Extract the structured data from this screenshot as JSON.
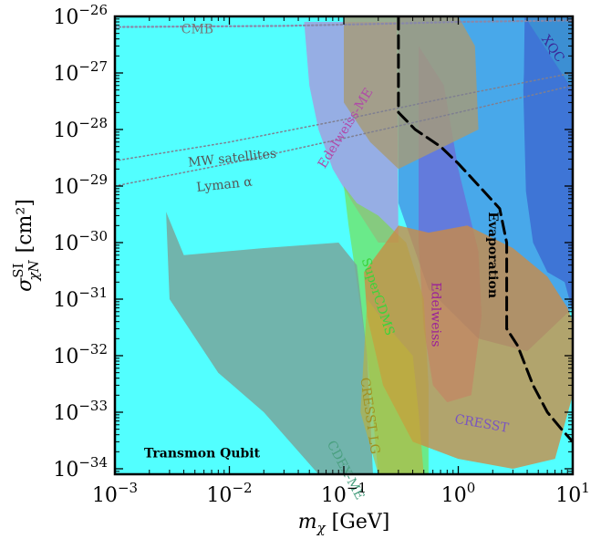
{
  "chart_data": {
    "type": "area",
    "title": "",
    "xlabel_base": "m",
    "xlabel_sub": "χ",
    "xlabel_unit": "[GeV]",
    "ylabel_base": "σ",
    "ylabel_sup": "SI",
    "ylabel_sub": "χN",
    "ylabel_unit": "[cm²]",
    "x_scale": "log",
    "y_scale": "log",
    "xlim": [
      0.001,
      10
    ],
    "ylim": [
      8e-35,
      1e-26
    ],
    "x_ticks": [
      {
        "base": "10",
        "exp": "−3",
        "value": 0.001
      },
      {
        "base": "10",
        "exp": "−2",
        "value": 0.01
      },
      {
        "base": "10",
        "exp": "−1",
        "value": 0.1
      },
      {
        "base": "10",
        "exp": "0",
        "value": 1
      },
      {
        "base": "10",
        "exp": "1",
        "value": 10
      }
    ],
    "y_ticks": [
      {
        "base": "10",
        "exp": "−26",
        "value": 1e-26
      },
      {
        "base": "10",
        "exp": "−27",
        "value": 1e-27
      },
      {
        "base": "10",
        "exp": "−28",
        "value": 1e-28
      },
      {
        "base": "10",
        "exp": "−29",
        "value": 1e-29
      },
      {
        "base": "10",
        "exp": "−30",
        "value": 1e-30
      },
      {
        "base": "10",
        "exp": "−31",
        "value": 1e-31
      },
      {
        "base": "10",
        "exp": "−32",
        "value": 1e-32
      },
      {
        "base": "10",
        "exp": "−33",
        "value": 1e-33
      },
      {
        "base": "10",
        "exp": "−34",
        "value": 1e-34
      }
    ],
    "regions": [
      {
        "name": "Transmon Qubit",
        "color": "#00ffff",
        "opacity": 0.68,
        "label_color": "#000000",
        "label_bold": true,
        "label_size": 19,
        "label_rotation": 0,
        "label_at": [
          0.0018,
          1.6e-34
        ],
        "points": [
          [
            0.001,
            8e-35
          ],
          [
            10,
            8e-35
          ],
          [
            10,
            1e-26
          ],
          [
            0.001,
            1e-26
          ]
        ]
      },
      {
        "name": "XQC",
        "color": "#2e4ab8",
        "opacity": 0.62,
        "label_color": "#3a2a9a",
        "label_bold": false,
        "label_size": 14,
        "label_rotation": 55,
        "label_at": [
          5.3,
          4e-27
        ],
        "points": [
          [
            3.8,
            1e-26
          ],
          [
            10,
            1e-26
          ],
          [
            10,
            6e-32
          ],
          [
            8.5,
            2e-31
          ],
          [
            6,
            3e-31
          ],
          [
            4.5,
            1e-30
          ],
          [
            3.9,
            8e-30
          ],
          [
            3.7,
            5e-28
          ],
          [
            3.75,
            1e-27
          ]
        ]
      },
      {
        "name": "Edelweiss",
        "color": "#c04bc4",
        "opacity": 0.55,
        "label_color": "#9a1f9a",
        "label_bold": false,
        "label_size": 14,
        "label_rotation": 90,
        "label_at": [
          0.59,
          2e-31
        ],
        "points": [
          [
            0.45,
            3e-27
          ],
          [
            0.75,
            6e-28
          ],
          [
            1.0,
            2e-29
          ],
          [
            1.5,
            7e-31
          ],
          [
            1.6,
            5e-32
          ],
          [
            1.3,
            2e-33
          ],
          [
            0.8,
            1.5e-33
          ],
          [
            0.6,
            3e-33
          ],
          [
            0.5,
            3e-32
          ],
          [
            0.45,
            1e-30
          ]
        ]
      },
      {
        "name": "blue-band",
        "color": "#4060d8",
        "opacity": 0.55,
        "points": [
          [
            0.3,
            1e-26
          ],
          [
            3.8,
            1e-26
          ],
          [
            10,
            5e-28
          ],
          [
            10,
            7e-32
          ],
          [
            4,
            1.2e-32
          ],
          [
            1.5,
            2e-32
          ],
          [
            0.55,
            1.5e-31
          ],
          [
            0.3,
            5e-30
          ]
        ]
      },
      {
        "name": "Edelweiss-ME",
        "color": "#b38cd8",
        "opacity": 0.7,
        "label_color": "#b04aa8",
        "label_bold": false,
        "label_size": 14,
        "label_rotation": -58,
        "label_at": [
          0.068,
          2e-29
        ],
        "points": [
          [
            0.045,
            8e-27
          ],
          [
            0.29,
            8e-27
          ],
          [
            0.3,
            1e-30
          ],
          [
            0.2,
            1e-30
          ],
          [
            0.12,
            5e-30
          ],
          [
            0.08,
            2e-29
          ],
          [
            0.06,
            1e-28
          ],
          [
            0.05,
            6e-28
          ]
        ]
      },
      {
        "name": "SuperCDMS",
        "color": "#7cdc3c",
        "opacity": 0.6,
        "label_color": "#3ad43a",
        "label_bold": false,
        "label_size": 14,
        "label_rotation": 72,
        "label_at": [
          0.143,
          5e-31
        ],
        "points": [
          [
            0.1,
            1e-29
          ],
          [
            0.13,
            5e-30
          ],
          [
            0.2,
            3e-30
          ],
          [
            0.35,
            1e-30
          ],
          [
            0.5,
            1e-31
          ],
          [
            0.55,
            3e-33
          ],
          [
            0.55,
            8e-35
          ],
          [
            0.2,
            8e-35
          ],
          [
            0.16,
            1e-32
          ],
          [
            0.13,
            2e-31
          ],
          [
            0.11,
            2e-30
          ]
        ]
      },
      {
        "name": "upper-olive",
        "color": "#a69b78",
        "opacity": 0.82,
        "points": [
          [
            0.1,
            1e-26
          ],
          [
            0.32,
            1e-26
          ],
          [
            1.0,
            1e-26
          ],
          [
            1.4,
            3e-27
          ],
          [
            1.5,
            1e-28
          ],
          [
            0.3,
            2e-29
          ],
          [
            0.17,
            6e-29
          ],
          [
            0.1,
            3e-28
          ]
        ]
      },
      {
        "name": "CRESST",
        "color": "#cc8a44",
        "opacity": 0.78,
        "label_color": "#7a55c0",
        "label_bold": false,
        "label_size": 14,
        "label_rotation": 10,
        "label_at": [
          0.92,
          6.5e-34
        ],
        "points": [
          [
            0.15,
            3e-31
          ],
          [
            0.3,
            2e-30
          ],
          [
            0.55,
            1.5e-30
          ],
          [
            1.2,
            2e-30
          ],
          [
            3,
            8e-31
          ],
          [
            6,
            2.5e-31
          ],
          [
            9,
            7e-32
          ],
          [
            10,
            4e-32
          ],
          [
            10,
            2e-33
          ],
          [
            7,
            1.5e-34
          ],
          [
            3,
            1e-34
          ],
          [
            1,
            1.5e-34
          ],
          [
            0.4,
            3e-34
          ],
          [
            0.22,
            3e-33
          ],
          [
            0.16,
            5e-32
          ]
        ]
      },
      {
        "name": "CDEX-ME",
        "color": "#77a39a",
        "opacity": 0.82,
        "label_color": "#4aa080",
        "label_bold": false,
        "label_size": 14,
        "label_rotation": 62,
        "label_at": [
          0.071,
          2.8e-34
        ],
        "points": [
          [
            0.0028,
            3.5e-30
          ],
          [
            0.004,
            6e-31
          ],
          [
            0.02,
            8e-31
          ],
          [
            0.09,
            1e-30
          ],
          [
            0.13,
            4e-31
          ],
          [
            0.16,
            1e-32
          ],
          [
            0.18,
            8e-35
          ],
          [
            0.06,
            8e-35
          ],
          [
            0.02,
            1e-33
          ],
          [
            0.008,
            5e-33
          ],
          [
            0.003,
            1e-31
          ]
        ]
      },
      {
        "name": "CRESST LG",
        "color": "#bfb23a",
        "opacity": 0.62,
        "label_color": "#a09020",
        "label_bold": false,
        "label_size": 14,
        "label_rotation": 82,
        "label_at": [
          0.14,
          4e-33
        ],
        "points": [
          [
            0.16,
            1e-31
          ],
          [
            0.25,
            3e-32
          ],
          [
            0.4,
            1e-32
          ],
          [
            0.45,
            1e-33
          ],
          [
            0.5,
            8e-35
          ],
          [
            0.2,
            8e-35
          ],
          [
            0.14,
            1e-33
          ]
        ]
      }
    ],
    "lines": [
      {
        "name": "CMB",
        "color": "#8888aa",
        "dash": "1.5,3",
        "width": 2.2,
        "label_color": "#777777",
        "label_rotation": 0,
        "label_size": 14,
        "label_at": [
          0.0038,
          5e-27
        ],
        "points": [
          [
            0.001,
            6.5e-27
          ],
          [
            0.03,
            6.8e-27
          ],
          [
            0.3,
            7.5e-27
          ],
          [
            1,
            8e-27
          ],
          [
            10,
            8.5e-27
          ]
        ]
      },
      {
        "name": "MW satellites",
        "color": "#7f7f90",
        "dash": "1.5,3",
        "width": 1.5,
        "label_color": "#555555",
        "label_rotation": -6,
        "label_size": 14,
        "label_at": [
          0.0044,
          2.2e-29
        ],
        "points": [
          [
            0.001,
            2.8e-29
          ],
          [
            0.01,
            6e-29
          ],
          [
            0.1,
            1.5e-28
          ],
          [
            1,
            4e-28
          ],
          [
            10,
            1e-27
          ]
        ]
      },
      {
        "name": "Lyman α",
        "color": "#7f7f90",
        "dash": "1.5,3",
        "width": 1.5,
        "label_color": "#555555",
        "label_rotation": -6,
        "label_size": 14,
        "label_at": [
          0.0052,
          8e-30
        ],
        "points": [
          [
            0.001,
            1e-29
          ],
          [
            0.01,
            2.5e-29
          ],
          [
            0.1,
            7e-29
          ],
          [
            1,
            2e-28
          ],
          [
            10,
            6e-28
          ]
        ]
      },
      {
        "name": "Evaporation",
        "color": "#000000",
        "dash": "14,7",
        "width": 3,
        "label_color": "#000000",
        "label_bold": true,
        "label_rotation": 90,
        "label_size": 18,
        "label_at": [
          1.85,
          3.5e-30
        ],
        "points": [
          [
            0.3,
            1e-26
          ],
          [
            0.3,
            2e-28
          ],
          [
            0.42,
            1e-28
          ],
          [
            0.7,
            5e-29
          ],
          [
            1,
            2.5e-29
          ],
          [
            1.4,
            1.2e-29
          ],
          [
            2.3,
            4e-30
          ],
          [
            2.65,
            1e-30
          ],
          [
            2.65,
            3e-32
          ],
          [
            3.3,
            1.5e-32
          ],
          [
            4.5,
            3e-33
          ],
          [
            6,
            1e-33
          ],
          [
            8,
            5e-34
          ],
          [
            10,
            3e-34
          ]
        ]
      }
    ]
  }
}
